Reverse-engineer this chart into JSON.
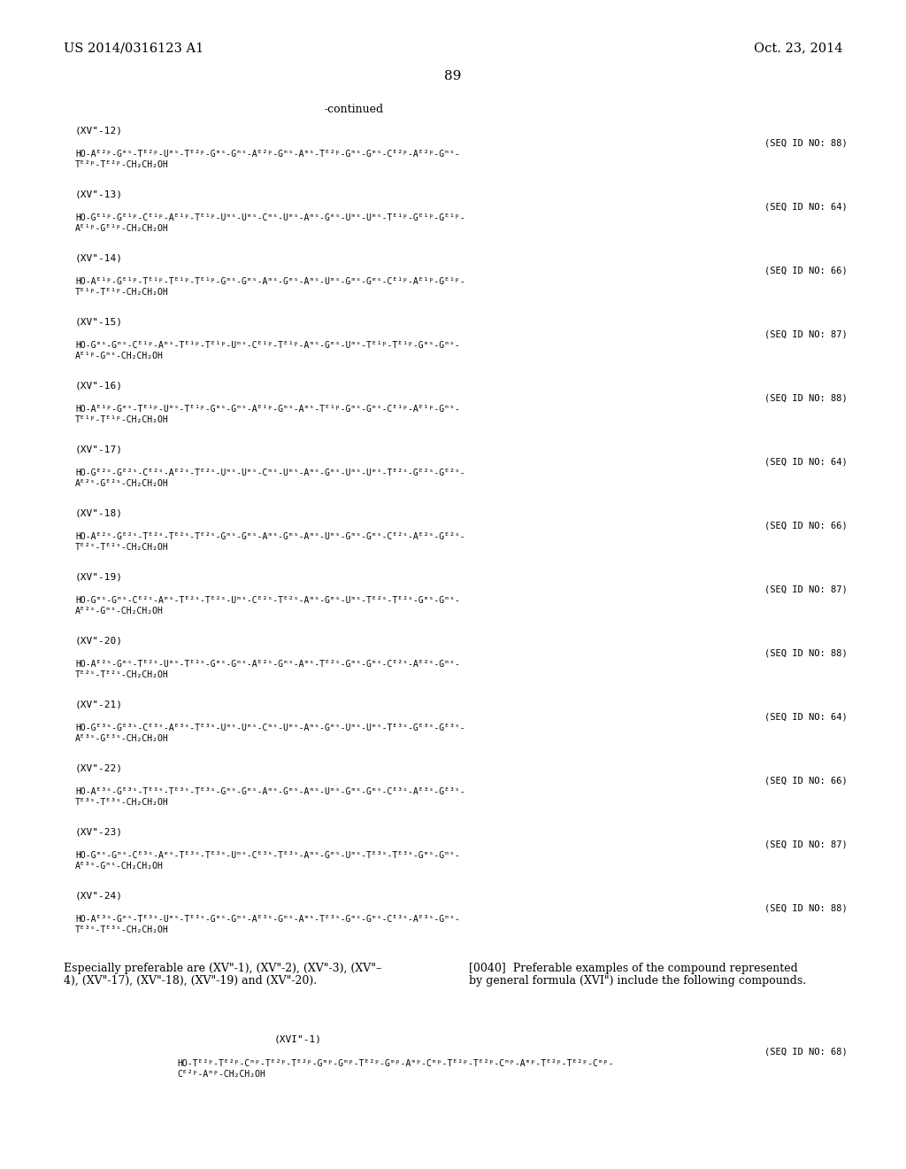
{
  "bg_color": "#ffffff",
  "header_left": "US 2014/0316123 A1",
  "header_right": "Oct. 23, 2014",
  "page_number": "89",
  "continued": "-continued",
  "sections": [
    {
      "label": "(XV\"-12)",
      "seq_id": "(SEQ ID NO: 88)",
      "line1": "HO-Aᴱ²ᵖ-Gᵐˢ-Tᴱ²ᵖ-Uᵐˢ-Tᴱ²ᵖ-Gᵐˢ-Gᵐˢ-Aᴱ²ᵖ-Gᵐˢ-Aᵐˢ-Tᴱ²ᵖ-Gᵐˢ-Gᵐˢ-Cᴱ²ᵖ-Aᴱ²ᵖ-Gᵐˢ-",
      "line2": "Tᴱ²ᵖ-Tᴱ²ᵖ-CH₂CH₂OH"
    },
    {
      "label": "(XV\"-13)",
      "seq_id": "(SEQ ID NO: 64)",
      "line1": "HO-Gᴱ¹ᵖ-Gᴱ¹ᵖ-Cᴱ¹ᵖ-Aᴱ¹ᵖ-Tᴱ¹ᵖ-Uᵐˢ-Uᵐˢ-Cᵐˢ-Uᵐˢ-Aᵐˢ-Gᵐˢ-Uᵐˢ-Uᵐˢ-Tᴱ¹ᵖ-Gᴱ¹ᵖ-Gᴱ¹ᵖ-",
      "line2": "Aᴱ¹ᵖ-Gᴱ¹ᵖ-CH₂CH₂OH"
    },
    {
      "label": "(XV\"-14)",
      "seq_id": "(SEQ ID NO: 66)",
      "line1": "HO-Aᴱ¹ᵖ-Gᴱ¹ᵖ-Tᴱ¹ᵖ-Tᴱ¹ᵖ-Tᴱ¹ᵖ-Gᵐˢ-Gᵐˢ-Aᵐˢ-Gᵐˢ-Aᵐˢ-Uᵐˢ-Gᵐˢ-Gᵐˢ-Cᴱ¹ᵖ-Aᴱ¹ᵖ-Gᴱ¹ᵖ-",
      "line2": "Tᴱ¹ᵖ-Tᴱ¹ᵖ-CH₂CH₂OH"
    },
    {
      "label": "(XV\"-15)",
      "seq_id": "(SEQ ID NO: 87)",
      "line1": "HO-Gᵐˢ-Gᵐˢ-Cᴱ¹ᵖ-Aᵐˢ-Tᴱ¹ᵖ-Tᴱ¹ᵖ-Uᵐˢ-Cᴱ¹ᵖ-Tᴱ¹ᵖ-Aᵐˢ-Gᵐˢ-Uᵐˢ-Tᴱ¹ᵖ-Tᴱ¹ᵖ-Gᵐˢ-Gᵐˢ-",
      "line2": "Aᴱ¹ᵖ-Gᵐˢ-CH₂CH₂OH"
    },
    {
      "label": "(XV\"-16)",
      "seq_id": "(SEQ ID NO: 88)",
      "line1": "HO-Aᴱ¹ᵖ-Gᵐˢ-Tᴱ¹ᵖ-Uᵐˢ-Tᴱ¹ᵖ-Gᵐˢ-Gᵐˢ-Aᴱ¹ᵖ-Gᵐˢ-Aᵐˢ-Tᴱ¹ᵖ-Gᵐˢ-Gᵐˢ-Cᴱ¹ᵖ-Aᴱ¹ᵖ-Gᵐˢ-",
      "line2": "Tᴱ¹ᵖ-Tᴱ¹ᵖ-CH₂CH₂OH"
    },
    {
      "label": "(XV\"-17)",
      "seq_id": "(SEQ ID NO: 64)",
      "line1": "HO-Gᴱ²ˢ-Gᴱ²ˢ-Cᴱ²ˢ-Aᴱ²ˢ-Tᴱ²ˢ-Uᵐˢ-Uᵐˢ-Cᵐˢ-Uᵐˢ-Aᵐˢ-Gᵐˢ-Uᵐˢ-Uᵐˢ-Tᴱ²ˢ-Gᴱ²ˢ-Gᴱ²ˢ-",
      "line2": "Aᴱ²ˢ-Gᴱ²ˢ-CH₂CH₂OH"
    },
    {
      "label": "(XV\"-18)",
      "seq_id": "(SEQ ID NO: 66)",
      "line1": "HO-Aᴱ²ˢ-Gᴱ²ˢ-Tᴱ²ˢ-Tᴱ²ˢ-Tᴱ²ˢ-Gᵐˢ-Gᵐˢ-Aᵐˢ-Gᵐˢ-Aᵐˢ-Uᵐˢ-Gᵐˢ-Gᵐˢ-Cᴱ²ˢ-Aᴱ²ˢ-Gᴱ²ˢ-",
      "line2": "Tᴱ²ˢ-Tᴱ²ˢ-CH₂CH₂OH"
    },
    {
      "label": "(XV\"-19)",
      "seq_id": "(SEQ ID NO: 87)",
      "line1": "HO-Gᵐˢ-Gᵐˢ-Cᴱ²ˢ-Aᵐˢ-Tᴱ²ˢ-Tᴱ²ˢ-Uᵐˢ-Cᴱ²ˢ-Tᴱ²ˢ-Aᵐˢ-Gᵐˢ-Uᵐˢ-Tᴱ²ˢ-Tᴱ²ˢ-Gᵐˢ-Gᵐˢ-",
      "line2": "Aᴱ²ˢ-Gᵐˢ-CH₂CH₂OH"
    },
    {
      "label": "(XV\"-20)",
      "seq_id": "(SEQ ID NO: 88)",
      "line1": "HO-Aᴱ²ˢ-Gᵐˢ-Tᴱ²ˢ-Uᵐˢ-Tᴱ²ˢ-Gᵐˢ-Gᵐˢ-Aᴱ²ˢ-Gᵐˢ-Aᵐˢ-Tᴱ²ˢ-Gᵐˢ-Gᵐˢ-Cᴱ²ˢ-Aᴱ²ˢ-Gᵐˢ-",
      "line2": "Tᴱ²ˢ-Tᴱ²ˢ-CH₂CH₂OH"
    },
    {
      "label": "(XV\"-21)",
      "seq_id": "(SEQ ID NO: 64)",
      "line1": "HO-Gᴱ³ˢ-Gᴱ³ˢ-Cᴱ³ˢ-Aᴱ³ˢ-Tᴱ³ˢ-Uᵐˢ-Uᵐˢ-Cᵐˢ-Uᵐˢ-Aᵐˢ-Gᵐˢ-Uᵐˢ-Uᵐˢ-Tᴱ³ˢ-Gᴱ³ˢ-Gᴱ³ˢ-",
      "line2": "Aᴱ³ˢ-Gᴱ³ˢ-CH₂CH₂OH"
    },
    {
      "label": "(XV\"-22)",
      "seq_id": "(SEQ ID NO: 66)",
      "line1": "HO-Aᴱ³ˢ-Gᴱ³ˢ-Tᴱ³ˢ-Tᴱ³ˢ-Tᴱ³ˢ-Gᵐˢ-Gᵐˢ-Aᵐˢ-Gᵐˢ-Aᵐˢ-Uᵐˢ-Gᵐˢ-Gᵐˢ-Cᴱ³ˢ-Aᴱ³ˢ-Gᴱ³ˢ-",
      "line2": "Tᴱ³ˢ-Tᴱ³ˢ-CH₂CH₂OH"
    },
    {
      "label": "(XV\"-23)",
      "seq_id": "(SEQ ID NO: 87)",
      "line1": "HO-Gᵐˢ-Gᵐˢ-Cᴱ³ˢ-Aᵐˢ-Tᴱ³ˢ-Tᴱ³ˢ-Uᵐˢ-Cᴱ³ˢ-Tᴱ³ˢ-Aᵐˢ-Gᵐˢ-Uᵐˢ-Tᴱ³ˢ-Tᴱ³ˢ-Gᵐˢ-Gᵐˢ-",
      "line2": "Aᴱ³ˢ-Gᵐˢ-CH₂CH₂OH"
    },
    {
      "label": "(XV\"-24)",
      "seq_id": "(SEQ ID NO: 88)",
      "line1": "HO-Aᴱ³ˢ-Gᵐˢ-Tᴱ³ˢ-Uᵐˢ-Tᴱ³ˢ-Gᵐˢ-Gᵐˢ-Aᴱ³ˢ-Gᵐˢ-Aᵐˢ-Tᴱ³ˢ-Gᵐˢ-Gᵐˢ-Cᴱ³ˢ-Aᴱ³ˢ-Gᵐˢ-",
      "line2": "Tᴱ³ˢ-Tᴱ³ˢ-CH₂CH₂OH"
    }
  ],
  "footer_left_line1": "Especially preferable are (XV\"-1), (XV\"-2), (XV\"-3), (XV\"–",
  "footer_left_line2": "4), (XV\"-17), (XV\"-18), (XV\"-19) and (XV\"-20).",
  "footer_right_line1": "[0040]  Preferable examples of the compound represented",
  "footer_right_line2": "by general formula (XVI\") include the following compounds.",
  "bottom_label": "(XVI\"-1)",
  "bottom_seq": "(SEQ ID NO: 68)",
  "bottom_line1": "HO-Tᴱ²ᵖ-Tᴱ²ᵖ-Cᵐᵖ-Tᴱ²ᵖ-Tᴱ²ᵖ-Gᵐᵖ-Gᵐᵖ-Tᴱ²ᵖ-Gᵐᵖ-Aᵐᵖ-Cᵐᵖ-Tᴱ²ᵖ-Tᴱ²ᵖ-Cᵐᵖ-Aᵐᵖ-Tᴱ²ᵖ-Tᴱ²ᵖ-Cᵐᵖ-",
  "bottom_line2": "Cᴱ²ᵖ-Aᵐᵖ-CH₂CH₂OH"
}
